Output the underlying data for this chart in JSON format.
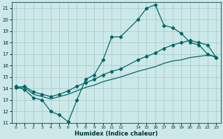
{
  "xlabel": "Humidex (Indice chaleur)",
  "background_color": "#cce8e8",
  "grid_color": "#aacccc",
  "line_color": "#006666",
  "xlim": [
    -0.5,
    23.5
  ],
  "ylim": [
    11,
    21.5
  ],
  "xticks": [
    0,
    1,
    2,
    3,
    4,
    5,
    6,
    7,
    8,
    9,
    10,
    11,
    12,
    14,
    15,
    16,
    17,
    18,
    19,
    20,
    21,
    22,
    23
  ],
  "yticks": [
    11,
    12,
    13,
    14,
    15,
    16,
    17,
    18,
    19,
    20,
    21
  ],
  "line1_x": [
    0,
    1,
    2,
    3,
    4,
    5,
    6,
    7,
    8,
    9,
    10,
    11,
    12,
    14,
    15,
    16,
    17,
    18,
    19,
    20,
    21,
    22,
    23
  ],
  "line1_y": [
    14.2,
    13.9,
    13.2,
    13.0,
    12.0,
    11.7,
    11.1,
    13.0,
    14.8,
    15.2,
    16.5,
    18.5,
    18.5,
    20.0,
    21.0,
    21.3,
    19.5,
    19.3,
    18.8,
    18.0,
    17.8,
    17.0,
    16.7
  ],
  "line2_x": [
    0,
    1,
    2,
    3,
    4,
    5,
    6,
    7,
    8,
    9,
    10,
    11,
    12,
    14,
    15,
    16,
    17,
    18,
    19,
    20,
    21,
    22,
    23
  ],
  "line2_y": [
    14.1,
    14.2,
    13.7,
    13.5,
    13.3,
    13.5,
    13.8,
    14.2,
    14.5,
    14.8,
    15.2,
    15.5,
    15.7,
    16.5,
    16.8,
    17.1,
    17.5,
    17.8,
    18.0,
    18.2,
    18.0,
    17.8,
    16.7
  ],
  "line3_x": [
    0,
    1,
    2,
    3,
    4,
    5,
    6,
    7,
    8,
    9,
    10,
    11,
    12,
    14,
    15,
    16,
    17,
    18,
    19,
    20,
    21,
    22,
    23
  ],
  "line3_y": [
    14.0,
    14.1,
    13.5,
    13.3,
    13.1,
    13.3,
    13.5,
    13.8,
    14.1,
    14.3,
    14.6,
    14.8,
    15.0,
    15.5,
    15.7,
    15.9,
    16.2,
    16.4,
    16.5,
    16.7,
    16.8,
    16.9,
    16.8
  ]
}
